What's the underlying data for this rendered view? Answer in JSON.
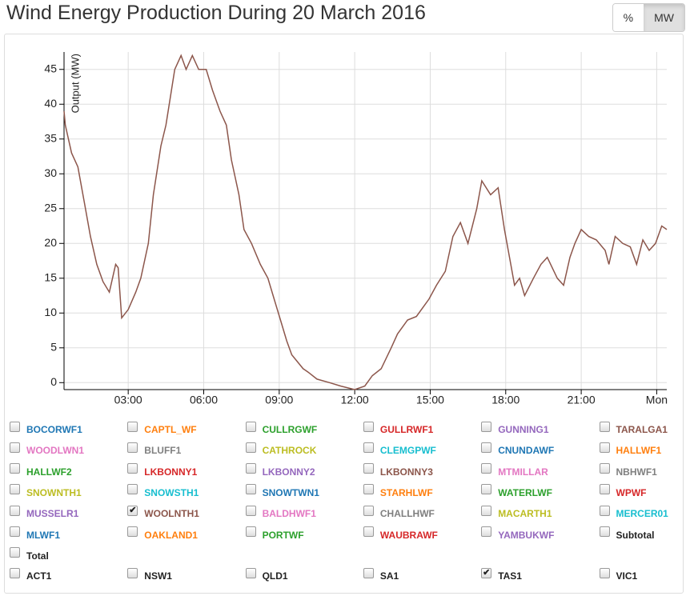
{
  "chart_data": {
    "type": "line",
    "title": "Wind Energy Production During 20 March 2016",
    "y_label": "Output (MW)",
    "x": [
      0.45,
      0.5,
      0.75,
      1.0,
      1.25,
      1.5,
      1.75,
      2.0,
      2.25,
      2.5,
      2.6,
      2.74,
      3.0,
      3.3,
      3.5,
      3.8,
      4.0,
      4.3,
      4.5,
      4.85,
      5.1,
      5.3,
      5.55,
      5.8,
      6.1,
      6.35,
      6.65,
      6.9,
      7.1,
      7.4,
      7.6,
      7.9,
      8.25,
      8.55,
      8.8,
      9.05,
      9.3,
      9.5,
      9.95,
      10.15,
      10.5,
      11.0,
      11.45,
      12.0,
      12.4,
      12.7,
      13.05,
      13.45,
      13.7,
      14.1,
      14.45,
      14.95,
      15.25,
      15.6,
      15.9,
      16.2,
      16.5,
      16.85,
      17.05,
      17.4,
      17.7,
      17.95,
      18.2,
      18.35,
      18.55,
      18.75,
      19.1,
      19.4,
      19.65,
      20.05,
      20.3,
      20.55,
      20.75,
      21.0,
      21.3,
      21.6,
      21.95,
      22.1,
      22.35,
      22.65,
      22.95,
      23.2,
      23.45,
      23.7,
      23.95,
      24.2,
      24.4
    ],
    "values": [
      39,
      37,
      33,
      31,
      26,
      21,
      17,
      14.5,
      13,
      17,
      16.5,
      9.3,
      10.5,
      13,
      15,
      20,
      27,
      34,
      37,
      45,
      47,
      45,
      47,
      45,
      45,
      42,
      39,
      37,
      32,
      27,
      22,
      20,
      17,
      15,
      12,
      9,
      6,
      4,
      2,
      1.5,
      0.5,
      0,
      -0.5,
      -1,
      -0.5,
      1,
      2,
      5,
      7,
      9,
      9.5,
      12,
      14,
      16,
      21,
      23,
      20,
      25,
      29,
      27,
      28,
      22,
      17,
      14,
      15,
      12.5,
      15,
      17,
      18,
      15,
      14,
      18,
      20,
      22,
      21,
      20.5,
      19,
      17,
      21,
      20,
      19.5,
      17,
      20.5,
      19,
      20,
      22.5,
      22
    ],
    "color": "#8c564b",
    "xlim": [
      0.45,
      24.4
    ],
    "ylim": [
      -1,
      47.5
    ],
    "xticks": [
      {
        "value": 3,
        "label": "03:00"
      },
      {
        "value": 6,
        "label": "06:00"
      },
      {
        "value": 9,
        "label": "09:00"
      },
      {
        "value": 12,
        "label": "12:00"
      },
      {
        "value": 15,
        "label": "15:00"
      },
      {
        "value": 18,
        "label": "18:00"
      },
      {
        "value": 21,
        "label": "21:00"
      },
      {
        "value": 24,
        "label": "Mon"
      }
    ],
    "yticks": [
      0,
      5,
      10,
      15,
      20,
      25,
      30,
      35,
      40,
      45
    ],
    "grid": true
  },
  "unit_buttons": [
    "%",
    "MW"
  ],
  "active_button": 1,
  "units": [
    {
      "label": "BOCORWF1",
      "color": "#1f77b4",
      "checked": false
    },
    {
      "label": "CAPTL_WF",
      "color": "#ff7f0e",
      "checked": false
    },
    {
      "label": "CULLRGWF",
      "color": "#2ca02c",
      "checked": false
    },
    {
      "label": "GULLRWF1",
      "color": "#d62728",
      "checked": false
    },
    {
      "label": "GUNNING1",
      "color": "#9467bd",
      "checked": false
    },
    {
      "label": "TARALGA1",
      "color": "#8c564b",
      "checked": false
    },
    {
      "label": "WOODLWN1",
      "color": "#e377c2",
      "checked": false
    },
    {
      "label": "BLUFF1",
      "color": "#7f7f7f",
      "checked": false
    },
    {
      "label": "CATHROCK",
      "color": "#bcbd22",
      "checked": false
    },
    {
      "label": "CLEMGPWF",
      "color": "#17becf",
      "checked": false
    },
    {
      "label": "CNUNDAWF",
      "color": "#1f77b4",
      "checked": false
    },
    {
      "label": "HALLWF1",
      "color": "#ff7f0e",
      "checked": false
    },
    {
      "label": "HALLWF2",
      "color": "#2ca02c",
      "checked": false
    },
    {
      "label": "LKBONNY1",
      "color": "#d62728",
      "checked": false
    },
    {
      "label": "LKBONNY2",
      "color": "#9467bd",
      "checked": false
    },
    {
      "label": "LKBONNY3",
      "color": "#8c564b",
      "checked": false
    },
    {
      "label": "MTMILLAR",
      "color": "#e377c2",
      "checked": false
    },
    {
      "label": "NBHWF1",
      "color": "#7f7f7f",
      "checked": false
    },
    {
      "label": "SNOWNTH1",
      "color": "#bcbd22",
      "checked": false
    },
    {
      "label": "SNOWSTH1",
      "color": "#17becf",
      "checked": false
    },
    {
      "label": "SNOWTWN1",
      "color": "#1f77b4",
      "checked": false
    },
    {
      "label": "STARHLWF",
      "color": "#ff7f0e",
      "checked": false
    },
    {
      "label": "WATERLWF",
      "color": "#2ca02c",
      "checked": false
    },
    {
      "label": "WPWF",
      "color": "#d62728",
      "checked": false
    },
    {
      "label": "MUSSELR1",
      "color": "#9467bd",
      "checked": false
    },
    {
      "label": "WOOLNTH1",
      "color": "#8c564b",
      "checked": true
    },
    {
      "label": "BALDHWF1",
      "color": "#e377c2",
      "checked": false
    },
    {
      "label": "CHALLHWF",
      "color": "#7f7f7f",
      "checked": false
    },
    {
      "label": "MACARTH1",
      "color": "#bcbd22",
      "checked": false
    },
    {
      "label": "MERCER01",
      "color": "#17becf",
      "checked": false
    },
    {
      "label": "MLWF1",
      "color": "#1f77b4",
      "checked": false
    },
    {
      "label": "OAKLAND1",
      "color": "#ff7f0e",
      "checked": false
    },
    {
      "label": "PORTWF",
      "color": "#2ca02c",
      "checked": false
    },
    {
      "label": "WAUBRAWF",
      "color": "#d62728",
      "checked": false
    },
    {
      "label": "YAMBUKWF",
      "color": "#9467bd",
      "checked": false
    },
    {
      "label": "Subtotal",
      "color": "#222222",
      "checked": false
    },
    {
      "label": "Total",
      "color": "#222222",
      "checked": false
    }
  ],
  "regions": [
    {
      "label": "ACT1",
      "color": "#222222",
      "checked": false
    },
    {
      "label": "NSW1",
      "color": "#222222",
      "checked": false
    },
    {
      "label": "QLD1",
      "color": "#222222",
      "checked": false
    },
    {
      "label": "SA1",
      "color": "#222222",
      "checked": false
    },
    {
      "label": "TAS1",
      "color": "#222222",
      "checked": true
    },
    {
      "label": "VIC1",
      "color": "#222222",
      "checked": false
    }
  ]
}
